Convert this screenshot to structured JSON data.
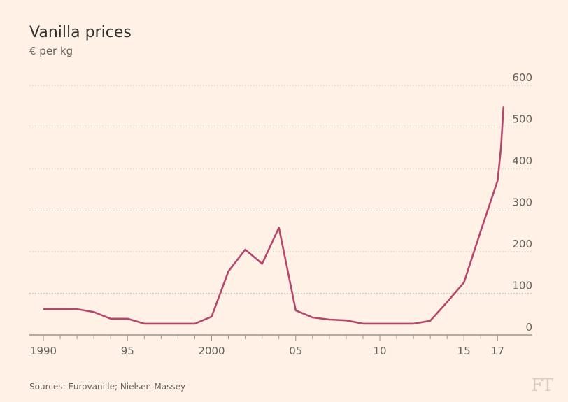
{
  "title": "Vanilla prices",
  "subtitle": "€ per kg",
  "source": "Sources: Eurovanille; Nielsen-Massey",
  "logo": "FT",
  "colors": {
    "background": "#fff1e5",
    "line": "#b5476d",
    "grid": "#c8bdb3",
    "axis": "#9e948c"
  },
  "chart_data": {
    "type": "line",
    "title": "Vanilla prices",
    "ylabel": "€ per kg",
    "ylim": [
      0,
      600
    ],
    "xlim": [
      1990,
      2017.35
    ],
    "grid": true,
    "y_ticks": [
      0,
      100,
      200,
      300,
      400,
      500,
      600
    ],
    "y_tick_labels": [
      "0",
      "100",
      "200",
      "300",
      "400",
      "500",
      "600"
    ],
    "x_ticks": [
      1990,
      1995,
      2000,
      2005,
      2010,
      2015,
      2017
    ],
    "x_tick_labels": [
      "1990",
      "95",
      "2000",
      "05",
      "10",
      "15",
      "17"
    ],
    "series": [
      {
        "x": [
          1990,
          1991,
          1992,
          1993,
          1994,
          1995,
          1996,
          1997,
          1998,
          1999,
          2000,
          2001,
          2002,
          2003,
          2004,
          2005,
          2006,
          2007,
          2008,
          2009,
          2010,
          2011,
          2012,
          2013,
          2014,
          2015,
          2016,
          2017,
          2017.2,
          2017.35
        ],
        "y": [
          62,
          62,
          62,
          55,
          39,
          39,
          27,
          27,
          27,
          27,
          44,
          153,
          205,
          171,
          258,
          59,
          42,
          37,
          35,
          27,
          27,
          27,
          27,
          34,
          79,
          126,
          250,
          371,
          450,
          549
        ]
      }
    ]
  }
}
